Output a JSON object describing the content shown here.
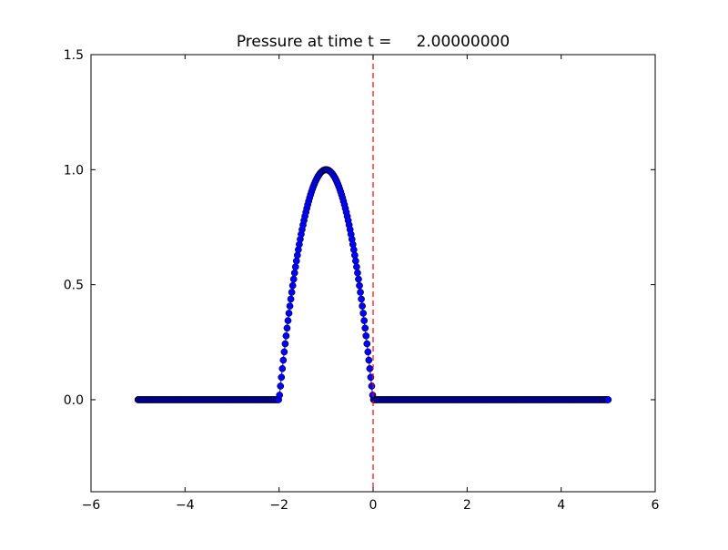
{
  "chart_data": {
    "type": "line",
    "title": "Pressure at time t =     2.00000000",
    "xlabel": "",
    "ylabel": "",
    "xlim": [
      -6,
      6
    ],
    "ylim": [
      -0.4,
      1.5
    ],
    "xticks": [
      -6,
      -4,
      -2,
      0,
      2,
      4,
      6
    ],
    "xtick_labels": [
      "−6",
      "−4",
      "−2",
      "0",
      "2",
      "4",
      "6"
    ],
    "yticks": [
      0.0,
      0.5,
      1.0,
      1.5
    ],
    "ytick_labels": [
      "0.0",
      "0.5",
      "1.0",
      "1.5"
    ],
    "grid": false,
    "series": [
      {
        "style": "line-with-circle-markers",
        "color": "#0000ff",
        "marker_edge_color": "#000000",
        "x_start": -5.0,
        "x_end": 5.0,
        "n_points": 500,
        "description_of_values": "y = 0 outside (-2, 0); y = 1 - (x + 1)^2 for -2 <= x <= 0, peak 1.0 at x = -1"
      }
    ],
    "reference_lines": [
      {
        "orientation": "vertical",
        "x": 0.0,
        "color": "#ff0000",
        "style": "dashed"
      }
    ]
  }
}
